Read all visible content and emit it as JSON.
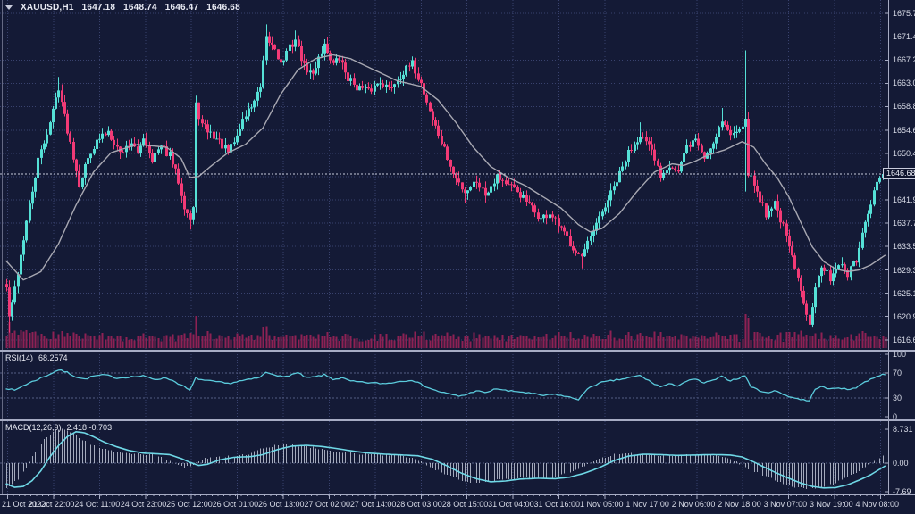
{
  "header": {
    "symbol_timeframe": "XAUUSD,H1",
    "open": "1647.18",
    "high": "1648.74",
    "low": "1646.47",
    "close": "1646.68"
  },
  "colors": {
    "background": "#141A36",
    "grid": "#39426E",
    "bull": "#55E0D6",
    "bear": "#F23A76",
    "ma_line": "#A8A8B2",
    "volume": "#8E2154",
    "rsi_line": "#5BCBDC",
    "rsi_level": "#555E84",
    "macd_signal": "#6FD8E6",
    "macd_histogram": "#C8CEDE",
    "separator": "#A7ACC4",
    "axis_text": "#D9DCE8",
    "price_marker": "#C9CCDC",
    "price_box_bg": "#10152E",
    "title_text": "#E9EBF4"
  },
  "chart_data": {
    "type": "candlestick+indicators",
    "title": "XAUUSD,H1 1647.18 1648.74 1646.47 1646.68",
    "symbol": "XAUUSD",
    "timeframe": "H1",
    "current_price": 1646.68,
    "current_price_label": "1646.68",
    "price_axis": {
      "min": 1616.65,
      "max": 1675.7,
      "ticks": [
        "1675.70",
        "1671.45",
        "1667.25",
        "1663.05",
        "1658.85",
        "1654.60",
        "1650.40",
        "1646.20",
        "1641.95",
        "1637.75",
        "1633.55",
        "1629.30",
        "1625.10",
        "1620.90",
        "1616.65"
      ]
    },
    "time_axis": {
      "labels": [
        "21 Oct 2022",
        "21 Oct 22:00",
        "24 Oct 11:00",
        "24 Oct 23:00",
        "25 Oct 12:00",
        "26 Oct 01:00",
        "26 Oct 13:00",
        "27 Oct 02:00",
        "27 Oct 14:00",
        "28 Oct 03:00",
        "28 Oct 15:00",
        "31 Oct 04:00",
        "31 Oct 16:00",
        "1 Nov 05:00",
        "1 Nov 17:00",
        "2 Nov 06:00",
        "2 Nov 18:00",
        "3 Nov 07:00",
        "3 Nov 19:00",
        "4 Nov 08:00"
      ]
    },
    "candles": {
      "count": 302,
      "close_anchors": [
        [
          0,
          1626
        ],
        [
          1,
          1621
        ],
        [
          2,
          1623
        ],
        [
          4,
          1629
        ],
        [
          7,
          1638
        ],
        [
          11,
          1649
        ],
        [
          15,
          1656
        ],
        [
          18,
          1662.5
        ],
        [
          20,
          1657
        ],
        [
          23,
          1650
        ],
        [
          25,
          1645
        ],
        [
          29,
          1651
        ],
        [
          32,
          1653
        ],
        [
          35,
          1654.5
        ],
        [
          39,
          1650.5
        ],
        [
          43,
          1652.5
        ],
        [
          45,
          1650
        ],
        [
          47,
          1653.5
        ],
        [
          50,
          1649.5
        ],
        [
          53,
          1651.5
        ],
        [
          56,
          1650
        ],
        [
          59,
          1645.5
        ],
        [
          61,
          1641
        ],
        [
          63,
          1638.5
        ],
        [
          64,
          1640.5
        ],
        [
          65,
          1659
        ],
        [
          67,
          1655.5
        ],
        [
          70,
          1654
        ],
        [
          73,
          1652.5
        ],
        [
          76,
          1650.5
        ],
        [
          79,
          1653.5
        ],
        [
          81,
          1656.5
        ],
        [
          84,
          1659
        ],
        [
          87,
          1662
        ],
        [
          89,
          1671
        ],
        [
          92,
          1669.5
        ],
        [
          94,
          1666.5
        ],
        [
          97,
          1669.5
        ],
        [
          99,
          1671
        ],
        [
          102,
          1666
        ],
        [
          105,
          1664.5
        ],
        [
          107,
          1668
        ],
        [
          109,
          1670
        ],
        [
          112,
          1666.5
        ],
        [
          114,
          1667.5
        ],
        [
          117,
          1664
        ],
        [
          120,
          1662.5
        ],
        [
          124,
          1661.5
        ],
        [
          128,
          1663.5
        ],
        [
          131,
          1662
        ],
        [
          135,
          1664.5
        ],
        [
          139,
          1666.5
        ],
        [
          142,
          1663
        ],
        [
          146,
          1656.5
        ],
        [
          150,
          1651
        ],
        [
          153,
          1646.5
        ],
        [
          157,
          1643.5
        ],
        [
          161,
          1645.5
        ],
        [
          164,
          1643
        ],
        [
          168,
          1646.5
        ],
        [
          172,
          1644.5
        ],
        [
          175,
          1643.5
        ],
        [
          179,
          1641
        ],
        [
          183,
          1638.5
        ],
        [
          186,
          1639.5
        ],
        [
          190,
          1636.5
        ],
        [
          194,
          1633.5
        ],
        [
          197,
          1631.5
        ],
        [
          200,
          1635
        ],
        [
          203,
          1638.5
        ],
        [
          206,
          1642
        ],
        [
          210,
          1646.5
        ],
        [
          213,
          1650.5
        ],
        [
          217,
          1654
        ],
        [
          221,
          1650.5
        ],
        [
          224,
          1646.5
        ],
        [
          227,
          1648.5
        ],
        [
          230,
          1647
        ],
        [
          233,
          1651.5
        ],
        [
          236,
          1653
        ],
        [
          239,
          1649.5
        ],
        [
          242,
          1652.5
        ],
        [
          245,
          1656.5
        ],
        [
          248,
          1653.5
        ],
        [
          251,
          1655.5
        ],
        [
          253,
          1656
        ],
        [
          254,
          1647
        ],
        [
          257,
          1643.5
        ],
        [
          260,
          1639.5
        ],
        [
          263,
          1641.5
        ],
        [
          266,
          1637
        ],
        [
          269,
          1631.5
        ],
        [
          272,
          1625.5
        ],
        [
          275,
          1620
        ],
        [
          277,
          1626.5
        ],
        [
          279,
          1629.5
        ],
        [
          282,
          1628
        ],
        [
          285,
          1630.5
        ],
        [
          288,
          1628.5
        ],
        [
          291,
          1631
        ],
        [
          293,
          1635.5
        ],
        [
          296,
          1641
        ],
        [
          298,
          1645.5
        ],
        [
          301,
          1646.68
        ]
      ],
      "spikes": [
        {
          "i": 1,
          "low": 1618.0
        },
        {
          "i": 18,
          "high": 1664.2
        },
        {
          "i": 63,
          "low": 1636.6
        },
        {
          "i": 89,
          "high": 1673.7
        },
        {
          "i": 99,
          "high": 1672.6
        },
        {
          "i": 139,
          "high": 1667.9
        },
        {
          "i": 157,
          "low": 1641.4
        },
        {
          "i": 197,
          "low": 1629.6
        },
        {
          "i": 217,
          "high": 1656.0
        },
        {
          "i": 245,
          "high": 1658.6
        },
        {
          "i": 253,
          "high": 1669.0,
          "low": 1643.5
        },
        {
          "i": 275,
          "low": 1617.4
        }
      ]
    },
    "moving_average": {
      "anchors": [
        [
          0,
          1631
        ],
        [
          6,
          1627.5
        ],
        [
          12,
          1629
        ],
        [
          18,
          1634
        ],
        [
          24,
          1641
        ],
        [
          30,
          1647
        ],
        [
          36,
          1650.5
        ],
        [
          45,
          1652
        ],
        [
          55,
          1651.5
        ],
        [
          60,
          1649.5
        ],
        [
          63,
          1646
        ],
        [
          66,
          1646.2
        ],
        [
          70,
          1648
        ],
        [
          76,
          1650.5
        ],
        [
          82,
          1652
        ],
        [
          88,
          1655
        ],
        [
          94,
          1661
        ],
        [
          100,
          1665.5
        ],
        [
          106,
          1667.5
        ],
        [
          112,
          1668.2
        ],
        [
          118,
          1667.5
        ],
        [
          126,
          1665.5
        ],
        [
          134,
          1663.5
        ],
        [
          142,
          1662.5
        ],
        [
          148,
          1660
        ],
        [
          154,
          1656
        ],
        [
          160,
          1651.5
        ],
        [
          166,
          1648
        ],
        [
          172,
          1646
        ],
        [
          178,
          1644.5
        ],
        [
          184,
          1642.5
        ],
        [
          190,
          1640.5
        ],
        [
          196,
          1637.5
        ],
        [
          200,
          1636.2
        ],
        [
          204,
          1636.8
        ],
        [
          210,
          1639.5
        ],
        [
          216,
          1643.5
        ],
        [
          222,
          1647
        ],
        [
          228,
          1648.5
        ],
        [
          232,
          1648.2
        ],
        [
          236,
          1649
        ],
        [
          240,
          1650
        ],
        [
          246,
          1651
        ],
        [
          252,
          1652.5
        ],
        [
          256,
          1651.5
        ],
        [
          260,
          1648.5
        ],
        [
          264,
          1646
        ],
        [
          268,
          1642.5
        ],
        [
          272,
          1638
        ],
        [
          276,
          1633.5
        ],
        [
          280,
          1630.8
        ],
        [
          284,
          1629.5
        ],
        [
          288,
          1629
        ],
        [
          292,
          1629.3
        ],
        [
          296,
          1630.2
        ],
        [
          301,
          1632
        ]
      ]
    },
    "rsi": {
      "name": "RSI(14)",
      "value": "68.2574",
      "axis_labels": [
        "100",
        "70",
        "30",
        "0"
      ],
      "levels": [
        70,
        30
      ],
      "anchors": [
        [
          0,
          46
        ],
        [
          3,
          42
        ],
        [
          6,
          50
        ],
        [
          10,
          58
        ],
        [
          15,
          68
        ],
        [
          18,
          75
        ],
        [
          21,
          71
        ],
        [
          24,
          64
        ],
        [
          27,
          60
        ],
        [
          30,
          65
        ],
        [
          34,
          67
        ],
        [
          38,
          62
        ],
        [
          43,
          64
        ],
        [
          47,
          65
        ],
        [
          51,
          60
        ],
        [
          55,
          62
        ],
        [
          58,
          56
        ],
        [
          61,
          48
        ],
        [
          63,
          42
        ],
        [
          65,
          62
        ],
        [
          68,
          58
        ],
        [
          72,
          56
        ],
        [
          76,
          53
        ],
        [
          80,
          57
        ],
        [
          84,
          60
        ],
        [
          87,
          63
        ],
        [
          89,
          71
        ],
        [
          92,
          68
        ],
        [
          95,
          63
        ],
        [
          98,
          68
        ],
        [
          100,
          70
        ],
        [
          103,
          62
        ],
        [
          106,
          64
        ],
        [
          109,
          67
        ],
        [
          112,
          60
        ],
        [
          115,
          62
        ],
        [
          118,
          57
        ],
        [
          122,
          55
        ],
        [
          126,
          54
        ],
        [
          130,
          53
        ],
        [
          134,
          56
        ],
        [
          139,
          59
        ],
        [
          143,
          50
        ],
        [
          147,
          42
        ],
        [
          151,
          37
        ],
        [
          155,
          33
        ],
        [
          158,
          36
        ],
        [
          161,
          42
        ],
        [
          164,
          38
        ],
        [
          168,
          45
        ],
        [
          172,
          41
        ],
        [
          176,
          40
        ],
        [
          180,
          37
        ],
        [
          184,
          34
        ],
        [
          188,
          36
        ],
        [
          192,
          32
        ],
        [
          196,
          28
        ],
        [
          200,
          48
        ],
        [
          204,
          55
        ],
        [
          208,
          58
        ],
        [
          213,
          62
        ],
        [
          217,
          66
        ],
        [
          221,
          55
        ],
        [
          224,
          48
        ],
        [
          227,
          52
        ],
        [
          230,
          50
        ],
        [
          233,
          57
        ],
        [
          236,
          60
        ],
        [
          239,
          54
        ],
        [
          242,
          58
        ],
        [
          245,
          64
        ],
        [
          248,
          58
        ],
        [
          251,
          62
        ],
        [
          253,
          66
        ],
        [
          255,
          48
        ],
        [
          257,
          44
        ],
        [
          260,
          38
        ],
        [
          263,
          42
        ],
        [
          266,
          36
        ],
        [
          269,
          31
        ],
        [
          272,
          28
        ],
        [
          275,
          25
        ],
        [
          277,
          45
        ],
        [
          279,
          48
        ],
        [
          282,
          44
        ],
        [
          285,
          47
        ],
        [
          288,
          43
        ],
        [
          291,
          47
        ],
        [
          293,
          53
        ],
        [
          296,
          60
        ],
        [
          298,
          65
        ],
        [
          301,
          68.26
        ]
      ]
    },
    "macd": {
      "name": "MACD(12,26,9)",
      "value": "2.418 -0.703",
      "axis_labels": [
        "8.731",
        "0.00",
        "-7.69"
      ],
      "signal_anchors": [
        [
          0,
          -5.3
        ],
        [
          3,
          -6.2
        ],
        [
          6,
          -6.0
        ],
        [
          9,
          -4.5
        ],
        [
          12,
          -2.0
        ],
        [
          15,
          1.5
        ],
        [
          18,
          4.5
        ],
        [
          21,
          6.8
        ],
        [
          24,
          8.1
        ],
        [
          27,
          7.8
        ],
        [
          30,
          6.8
        ],
        [
          34,
          5.3
        ],
        [
          38,
          4.2
        ],
        [
          42,
          3.3
        ],
        [
          47,
          2.6
        ],
        [
          52,
          2.4
        ],
        [
          56,
          2.2
        ],
        [
          60,
          1.2
        ],
        [
          63,
          0.2
        ],
        [
          66,
          -0.6
        ],
        [
          69,
          -0.3
        ],
        [
          73,
          0.8
        ],
        [
          78,
          1.5
        ],
        [
          84,
          1.7
        ],
        [
          88,
          2.2
        ],
        [
          93,
          3.5
        ],
        [
          98,
          4.4
        ],
        [
          103,
          4.6
        ],
        [
          108,
          4.3
        ],
        [
          113,
          3.8
        ],
        [
          118,
          3.2
        ],
        [
          124,
          2.6
        ],
        [
          130,
          2.3
        ],
        [
          136,
          2.1
        ],
        [
          141,
          1.9
        ],
        [
          146,
          1.0
        ],
        [
          151,
          -0.7
        ],
        [
          156,
          -2.6
        ],
        [
          161,
          -4.0
        ],
        [
          166,
          -4.8
        ],
        [
          171,
          -4.6
        ],
        [
          176,
          -4.1
        ],
        [
          182,
          -3.9
        ],
        [
          188,
          -4.0
        ],
        [
          193,
          -3.6
        ],
        [
          198,
          -2.6
        ],
        [
          203,
          -1.2
        ],
        [
          208,
          0.6
        ],
        [
          213,
          1.8
        ],
        [
          218,
          2.3
        ],
        [
          224,
          2.2
        ],
        [
          230,
          2.0
        ],
        [
          236,
          2.1
        ],
        [
          242,
          2.2
        ],
        [
          248,
          2.1
        ],
        [
          252,
          1.6
        ],
        [
          256,
          0.3
        ],
        [
          260,
          -1.2
        ],
        [
          264,
          -2.6
        ],
        [
          268,
          -3.9
        ],
        [
          272,
          -5.1
        ],
        [
          276,
          -6.0
        ],
        [
          280,
          -6.4
        ],
        [
          284,
          -6.3
        ],
        [
          288,
          -5.6
        ],
        [
          292,
          -4.4
        ],
        [
          296,
          -3.0
        ],
        [
          301,
          -0.7
        ],
        [
          307,
          2.2
        ]
      ]
    }
  }
}
